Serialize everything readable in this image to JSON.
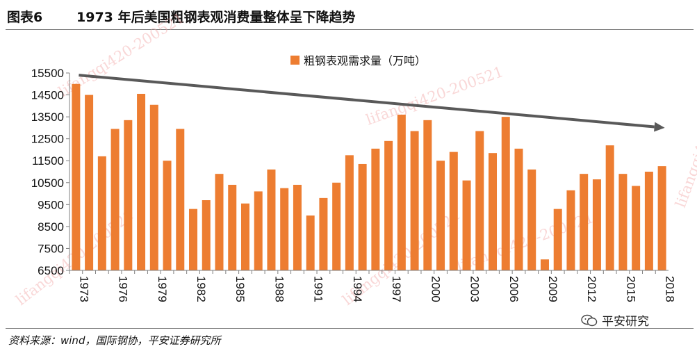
{
  "header": {
    "figure_no": "图表6",
    "title": "1973 年后美国粗钢表观消费量整体呈下降趋势"
  },
  "chart_data": {
    "type": "bar",
    "legend": "粗钢表观需求量（万吨）",
    "legend_position": "top-center",
    "ylim": [
      6500,
      15500
    ],
    "yticks": [
      6500,
      7500,
      8500,
      9500,
      10500,
      11500,
      12500,
      13500,
      14500,
      15500
    ],
    "xtick_labels": [
      "1973",
      "1976",
      "1979",
      "1982",
      "1985",
      "1988",
      "1991",
      "1994",
      "1997",
      "2000",
      "2003",
      "2006",
      "2009",
      "2012",
      "2015",
      "2018"
    ],
    "categories": [
      "1973",
      "1974",
      "1975",
      "1976",
      "1977",
      "1978",
      "1979",
      "1980",
      "1981",
      "1982",
      "1983",
      "1984",
      "1985",
      "1986",
      "1987",
      "1988",
      "1989",
      "1990",
      "1991",
      "1992",
      "1993",
      "1994",
      "1995",
      "1996",
      "1997",
      "1998",
      "1999",
      "2000",
      "2001",
      "2002",
      "2003",
      "2004",
      "2005",
      "2006",
      "2007",
      "2008",
      "2009",
      "2010",
      "2011",
      "2012",
      "2013",
      "2014",
      "2015",
      "2016",
      "2017",
      "2018"
    ],
    "values": [
      15000,
      14500,
      11700,
      12950,
      13350,
      14550,
      14050,
      11500,
      12950,
      9300,
      9700,
      10900,
      10400,
      9550,
      10100,
      11100,
      10250,
      10400,
      9000,
      9800,
      10500,
      11750,
      11350,
      12050,
      12400,
      13600,
      12850,
      13350,
      11500,
      11900,
      10600,
      12850,
      11850,
      13500,
      12050,
      11100,
      7000,
      9300,
      10150,
      10900,
      10650,
      12200,
      10900,
      10350,
      11000,
      11250
    ],
    "bar_color": "#ed7d31",
    "trend_line": {
      "from": [
        "1973",
        15400
      ],
      "to": [
        "2018",
        13000
      ],
      "color": "#595959"
    },
    "grid": false
  },
  "watermark": "lifangqi420-200521",
  "source": "资料来源：wind，国际钢协，平安证券研究所",
  "brand": "平安研究"
}
